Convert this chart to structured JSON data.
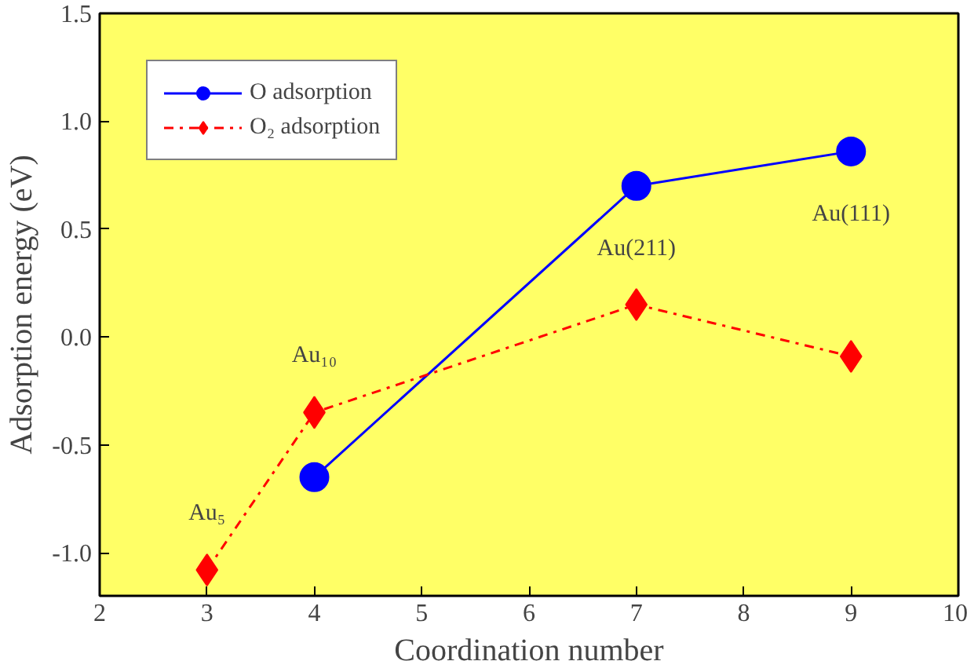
{
  "chart_data": {
    "type": "line",
    "xlabel": "Coordination number",
    "ylabel": "Adsorption energy (eV)",
    "xlim": [
      2,
      10
    ],
    "xticks": [
      2,
      3,
      4,
      5,
      6,
      7,
      8,
      9,
      10
    ],
    "ylim": [
      -1.2,
      1.5
    ],
    "yticks": [
      {
        "value": -1.0,
        "label": "-1.0"
      },
      {
        "value": -0.5,
        "label": "-0.5"
      },
      {
        "value": 0.0,
        "label": "0.0"
      },
      {
        "value": 0.5,
        "label": "0.5"
      },
      {
        "value": 1.0,
        "label": "1.0"
      },
      {
        "value": 1.5,
        "label": "1.5"
      }
    ],
    "series": [
      {
        "name": "O adsorption",
        "color": "#0000ff",
        "x": [
          4,
          7,
          9
        ],
        "values": [
          -0.65,
          0.7,
          0.86
        ],
        "marker": "circle",
        "line_style": "solid"
      },
      {
        "name": "O₂ adsorption",
        "color": "#ff0000",
        "x": [
          3,
          4,
          7,
          9
        ],
        "values": [
          -1.08,
          -0.35,
          0.15,
          -0.09
        ],
        "marker": "diamond",
        "line_style": "dashdot"
      }
    ],
    "annotations": [
      {
        "text": "Au₅",
        "x": 3,
        "y": -1.08
      },
      {
        "text": "Au₁₀",
        "x": 4,
        "y": -0.35
      },
      {
        "text": "Au(211)",
        "x": 7,
        "y": 0.7
      },
      {
        "text": "Au(111)",
        "x": 9,
        "y": 0.86
      }
    ],
    "legend": "top left",
    "grid": false
  }
}
